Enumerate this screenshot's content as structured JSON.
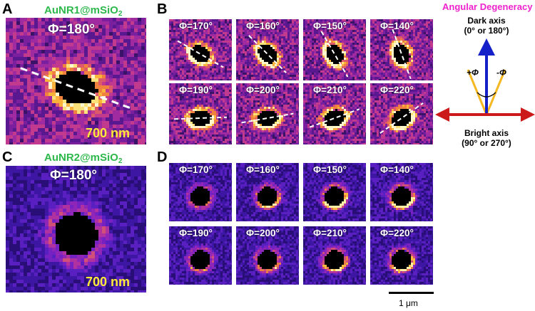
{
  "panels": {
    "A": {
      "letter": "A",
      "sample_name": "AuNR1@mSiO",
      "sample_subscript": "2",
      "phi": "Φ=180°",
      "scale_label": "700 nm",
      "palette": "light",
      "dashed_line": true,
      "rod_angle": 20,
      "lobe_mode": "ring"
    },
    "B": {
      "letter": "B",
      "tiles": [
        {
          "phi": "Φ=170°",
          "angle": 30
        },
        {
          "phi": "Φ=160°",
          "angle": 45
        },
        {
          "phi": "Φ=150°",
          "angle": 60
        },
        {
          "phi": "Φ=140°",
          "angle": 70
        },
        {
          "phi": "Φ=190°",
          "angle": -2
        },
        {
          "phi": "Φ=200°",
          "angle": -10
        },
        {
          "phi": "Φ=210°",
          "angle": -20
        },
        {
          "phi": "Φ=220°",
          "angle": -35
        }
      ]
    },
    "C": {
      "letter": "C",
      "sample_name": "AuNR2@mSiO",
      "sample_subscript": "2",
      "phi": "Φ=180°",
      "scale_label": "700 nm",
      "palette": "dark"
    },
    "D": {
      "letter": "D",
      "tiles": [
        {
          "phi": "Φ=170°",
          "lobe": 0.3
        },
        {
          "phi": "Φ=160°",
          "lobe": 0.6
        },
        {
          "phi": "Φ=150°",
          "lobe": 0.9
        },
        {
          "phi": "Φ=140°",
          "lobe": 1.0
        },
        {
          "phi": "Φ=190°",
          "lobe": 0.3
        },
        {
          "phi": "Φ=200°",
          "lobe": 0.5
        },
        {
          "phi": "Φ=210°",
          "lobe": 0.7
        },
        {
          "phi": "Φ=220°",
          "lobe": 0.8
        }
      ]
    }
  },
  "diagram": {
    "title": "Angular Degeneracy",
    "dark_axis_label": "Dark axis",
    "dark_axis_values": "(0° or 180°)",
    "plus_phi": "+Φ",
    "minus_phi": "-Φ",
    "bright_axis_label": "Bright axis",
    "bright_axis_values": "(90° or 270°)",
    "colors": {
      "dark_axis": "#1420c8",
      "bright_axis": "#cc1a1a",
      "cone": "#f5b820"
    }
  },
  "scale_bar": {
    "label": "1 μm"
  }
}
